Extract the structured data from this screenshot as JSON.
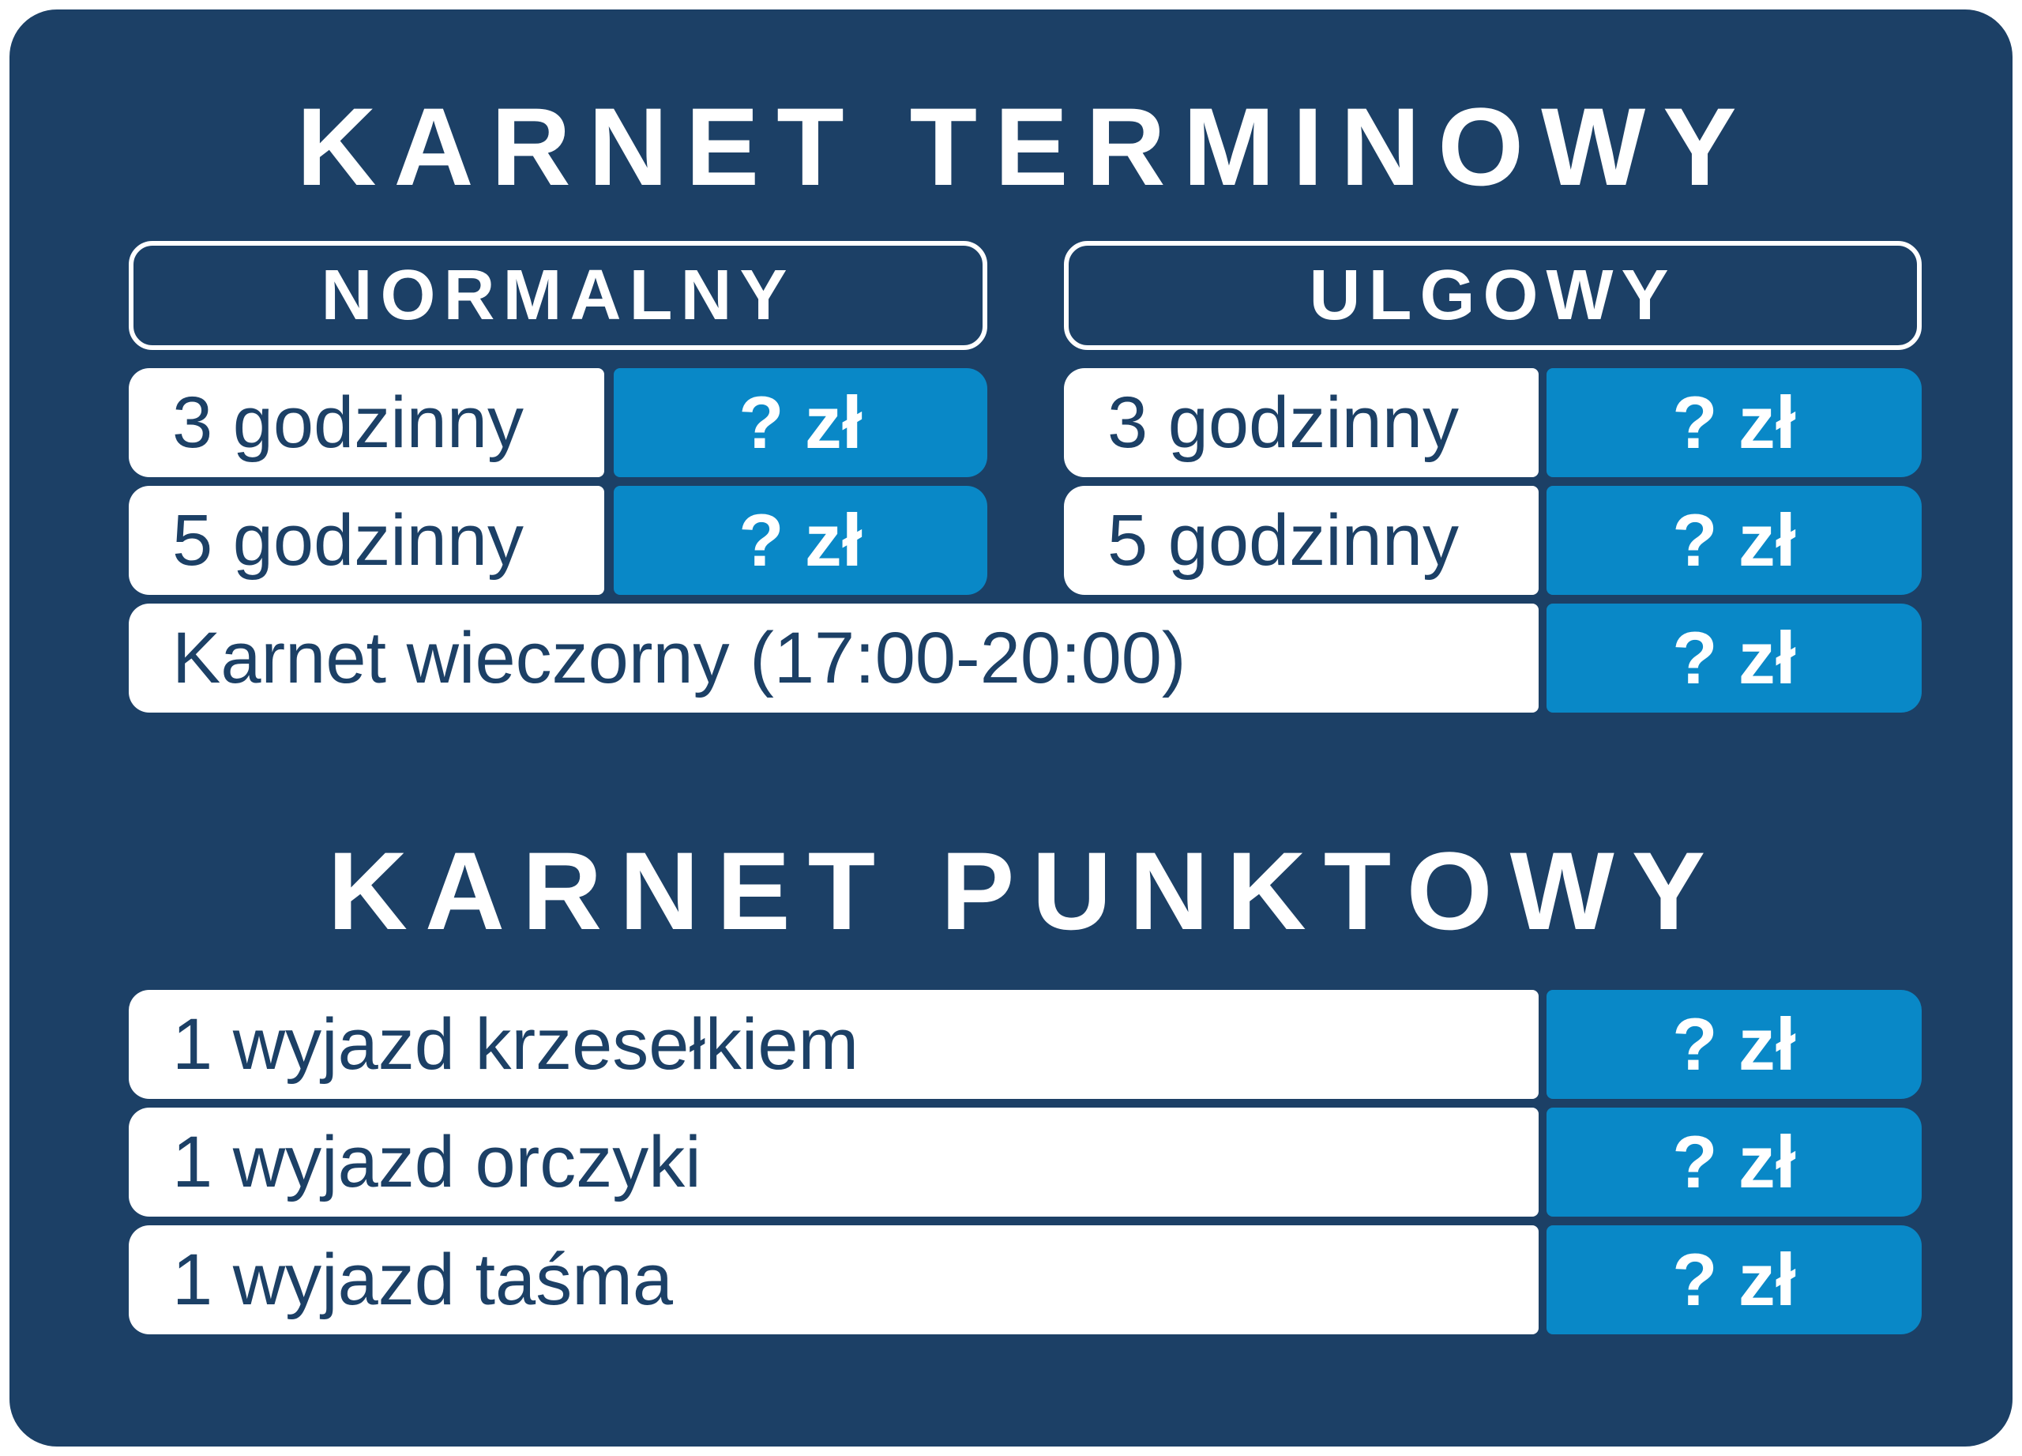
{
  "colors": {
    "card_navy": "#1c4066",
    "price_blue": "#0988c7",
    "text_white": "#ffffff",
    "label_text_navy": "#1c4066"
  },
  "terminowy": {
    "title": "KARNET TERMINOWY",
    "normalny": {
      "header": "NORMALNY",
      "rows": [
        {
          "label": "3 godzinny",
          "price": "? zł"
        },
        {
          "label": "5 godzinny",
          "price": "? zł"
        }
      ]
    },
    "ulgowy": {
      "header": "ULGOWY",
      "rows": [
        {
          "label": "3 godzinny",
          "price": "? zł"
        },
        {
          "label": "5 godzinny",
          "price": "? zł"
        }
      ]
    },
    "evening_row": {
      "label": "Karnet wieczorny (17:00-20:00)",
      "price": "? zł"
    }
  },
  "punktowy": {
    "title": "KARNET PUNKTOWY",
    "rows": [
      {
        "label": "1 wyjazd krzesełkiem",
        "price": "? zł"
      },
      {
        "label": "1 wyjazd orczyki",
        "price": "? zł"
      },
      {
        "label": "1 wyjazd taśma",
        "price": "? zł"
      }
    ]
  }
}
